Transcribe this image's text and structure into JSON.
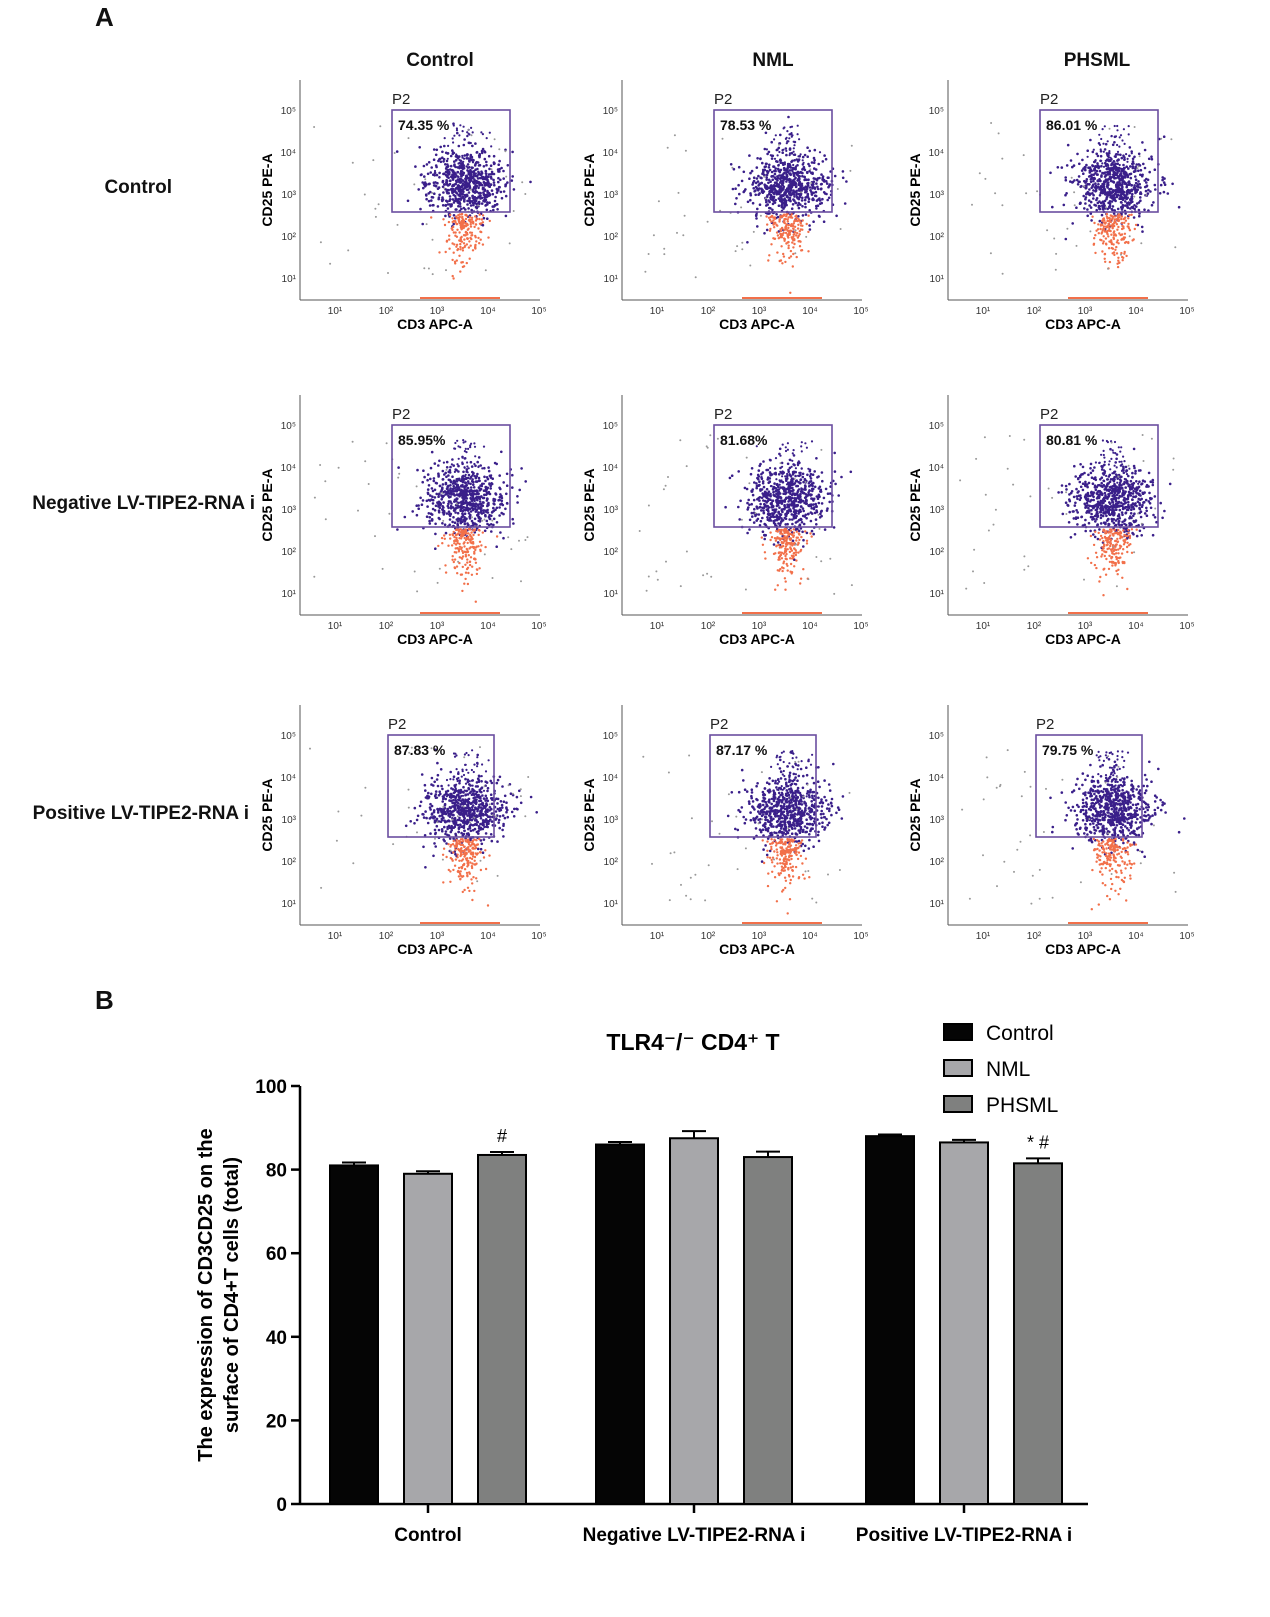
{
  "figure": {
    "panel_a_label": "A",
    "panel_b_label": "B",
    "columns": [
      "Control",
      "NML",
      "PHSML"
    ],
    "rows": [
      "Control",
      "Negative LV-TIPE2-RNA i",
      "Positive LV-TIPE2-RNA i"
    ],
    "gate_label": "P2",
    "x_axis_label": "CD3 APC-A",
    "y_axis_label": "CD25 PE-A",
    "decade_labels": [
      "10¹",
      "10²",
      "10³",
      "10⁴",
      "10⁵"
    ],
    "gate_percentages": [
      [
        "74.35 %",
        "78.53 %",
        "86.01 %"
      ],
      [
        "85.95%",
        "81.68%",
        "80.81 %"
      ],
      [
        "87.83 %",
        "87.17 %",
        "79.75 %"
      ]
    ]
  },
  "chart_data": {
    "type": "bar",
    "title": "TLR4⁻/⁻ CD4⁺ T",
    "xlabel": "",
    "ylabel": "The expression of CD3CD25 on the surface of CD4+T cells (total)",
    "ylim": [
      0,
      100
    ],
    "yticks": [
      0,
      20,
      40,
      60,
      80,
      100
    ],
    "categories": [
      "Control",
      "Negative LV-TIPE2-RNA i",
      "Positive LV-TIPE2-RNA i"
    ],
    "series": [
      {
        "name": "Control",
        "color": "#050505",
        "values": [
          81,
          86,
          88
        ],
        "errors": [
          0.7,
          0.6,
          0.4
        ]
      },
      {
        "name": "NML",
        "color": "#a7a7aa",
        "values": [
          79,
          87.5,
          86.5
        ],
        "errors": [
          0.6,
          1.7,
          0.6
        ]
      },
      {
        "name": "PHSML",
        "color": "#7f807f",
        "values": [
          83.5,
          83,
          81.5
        ],
        "errors": [
          0.7,
          1.3,
          1.2
        ]
      }
    ],
    "annotations": [
      {
        "category": 0,
        "series": 2,
        "text": "#"
      },
      {
        "category": 2,
        "series": 2,
        "text": "* #"
      }
    ],
    "legend_position": "top-right"
  }
}
